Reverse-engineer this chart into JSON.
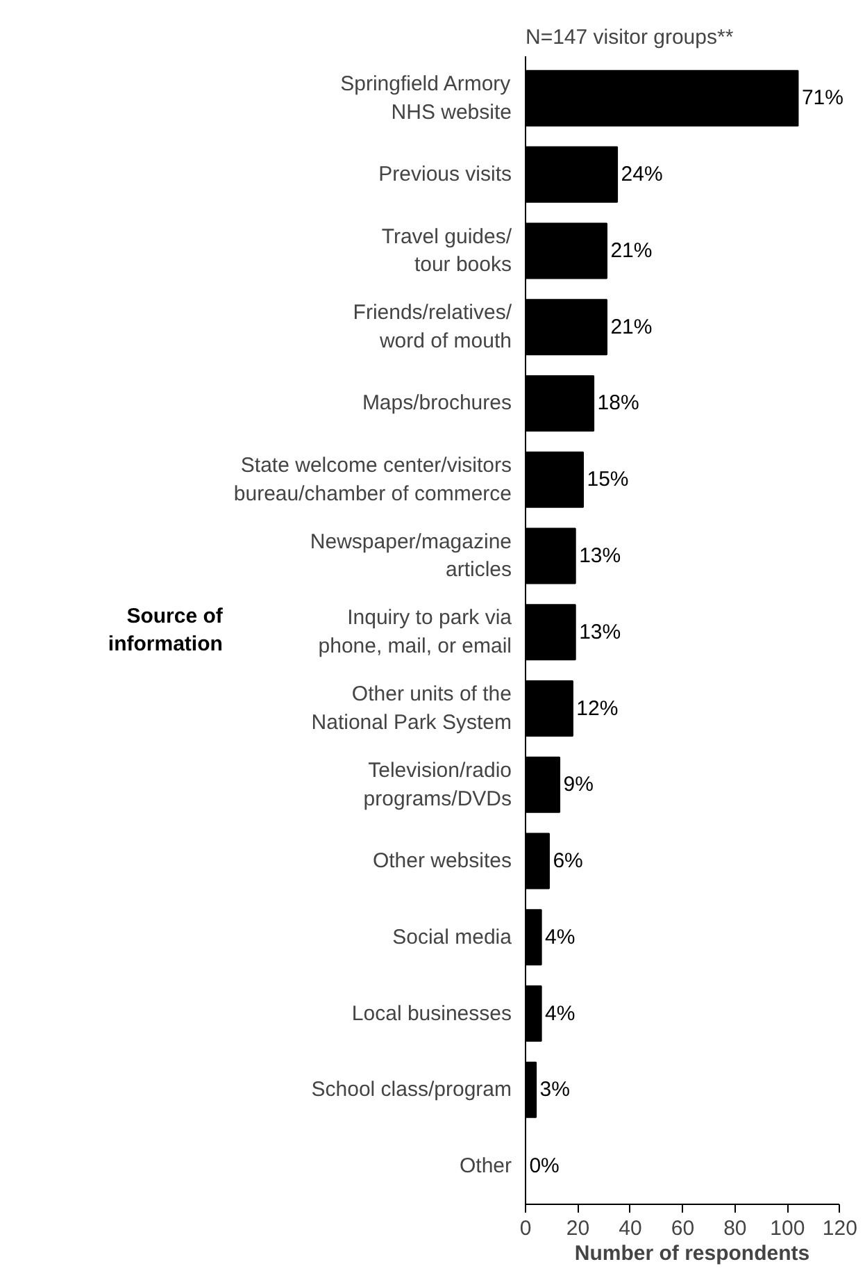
{
  "chart_data": {
    "type": "bar",
    "orientation": "horizontal",
    "title": "N=147 visitor groups**",
    "xlabel": "Number of respondents",
    "ylabel": "Source of information",
    "annotations": [
      {
        "text": "71%",
        "x": 104,
        "y": "Springfield Armory\nNHS website"
      },
      {
        "text": "24%",
        "x": 35,
        "y": "Previous visits"
      },
      {
        "text": "21%",
        "x": 31,
        "y": "Travel guides/\ntour books"
      },
      {
        "text": "21%",
        "x": 31,
        "y": "Friends/relatives/\nword of mouth"
      },
      {
        "text": "18%",
        "x": 26,
        "y": "Maps/brochures"
      },
      {
        "text": "15%",
        "x": 22,
        "y": "State welcome center/visitors\nbureau/chamber of commerce"
      },
      {
        "text": "13%",
        "x": 19,
        "y": "Newspaper/magazine\narticles"
      },
      {
        "text": "13%",
        "x": 19,
        "y": "Inquiry to park via\nphone, mail, or email"
      },
      {
        "text": "12%",
        "x": 18,
        "y": "Other units of the\nNational Park System"
      },
      {
        "text": "9%",
        "x": 13,
        "y": "Television/radio\nprograms/DVDs"
      },
      {
        "text": "6%",
        "x": 9,
        "y": "Other websites"
      },
      {
        "text": "4%",
        "x": 6,
        "y": "Social media"
      },
      {
        "text": "4%",
        "x": 6,
        "y": "Local businesses"
      },
      {
        "text": "3%",
        "x": 4,
        "y": "School class/program"
      },
      {
        "text": "0%",
        "x": 0,
        "y": "Other"
      }
    ],
    "categories": [
      "Springfield Armory\nNHS website",
      "Previous visits",
      "Travel guides/\ntour books",
      "Friends/relatives/\nword of mouth",
      "Maps/brochures",
      "State welcome center/visitors\nbureau/chamber of commerce",
      "Newspaper/magazine\narticles",
      "Inquiry to park via\nphone, mail, or email",
      "Other units of the\nNational Park System",
      "Television/radio\nprograms/DVDs",
      "Other websites",
      "Social media",
      "Local businesses",
      "School class/program",
      "Other"
    ],
    "values": [
      104,
      35,
      31,
      31,
      26,
      22,
      19,
      19,
      18,
      13,
      9,
      6,
      6,
      4,
      0
    ],
    "color": "#000000",
    "xlim": [
      0,
      120
    ],
    "xticks": [
      0,
      20,
      40,
      60,
      80,
      100,
      120
    ],
    "grid": false
  }
}
